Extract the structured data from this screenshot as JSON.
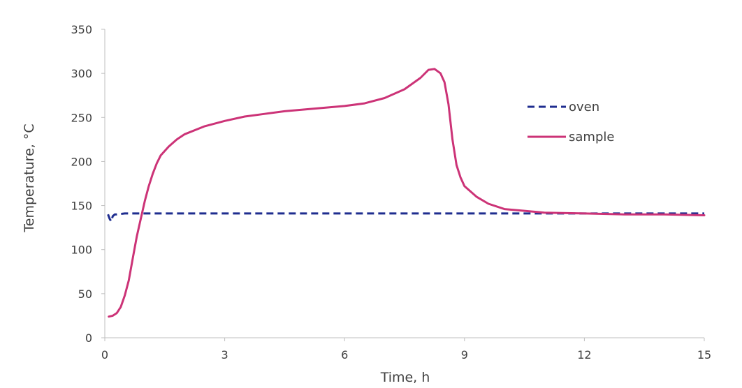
{
  "chart_data": {
    "type": "line",
    "title": "",
    "xlabel": "Time, h",
    "ylabel": "Temperature, °C",
    "xlim": [
      0,
      15
    ],
    "ylim": [
      0,
      350
    ],
    "xticks": [
      0,
      3,
      6,
      9,
      12,
      15
    ],
    "yticks": [
      0,
      50,
      100,
      150,
      200,
      250,
      300,
      350
    ],
    "grid": false,
    "legend_position": "right",
    "series": [
      {
        "name": "oven",
        "style": "dashed",
        "color": "#1f2d8f",
        "points": [
          [
            0.08,
            140
          ],
          [
            0.12,
            135
          ],
          [
            0.16,
            132
          ],
          [
            0.2,
            138
          ],
          [
            0.25,
            140
          ],
          [
            0.3,
            140
          ],
          [
            0.5,
            141
          ],
          [
            1,
            141
          ],
          [
            2,
            141
          ],
          [
            3,
            141
          ],
          [
            4,
            141
          ],
          [
            5,
            141
          ],
          [
            6,
            141
          ],
          [
            7,
            141
          ],
          [
            8,
            141
          ],
          [
            9,
            141
          ],
          [
            10,
            141
          ],
          [
            11,
            141
          ],
          [
            12,
            141
          ],
          [
            13,
            141
          ],
          [
            14,
            141
          ],
          [
            15,
            141
          ]
        ]
      },
      {
        "name": "sample",
        "style": "solid",
        "color": "#cc3377",
        "points": [
          [
            0.1,
            24
          ],
          [
            0.2,
            25
          ],
          [
            0.3,
            28
          ],
          [
            0.4,
            35
          ],
          [
            0.5,
            48
          ],
          [
            0.6,
            65
          ],
          [
            0.7,
            90
          ],
          [
            0.8,
            115
          ],
          [
            0.9,
            135
          ],
          [
            1.0,
            155
          ],
          [
            1.1,
            172
          ],
          [
            1.2,
            186
          ],
          [
            1.3,
            198
          ],
          [
            1.4,
            207
          ],
          [
            1.6,
            217
          ],
          [
            1.8,
            225
          ],
          [
            2.0,
            231
          ],
          [
            2.5,
            240
          ],
          [
            3,
            246
          ],
          [
            3.5,
            251
          ],
          [
            4,
            254
          ],
          [
            4.5,
            257
          ],
          [
            5,
            259
          ],
          [
            5.5,
            261
          ],
          [
            6,
            263
          ],
          [
            6.5,
            266
          ],
          [
            7,
            272
          ],
          [
            7.5,
            282
          ],
          [
            7.9,
            295
          ],
          [
            8.1,
            304
          ],
          [
            8.25,
            305
          ],
          [
            8.4,
            300
          ],
          [
            8.5,
            290
          ],
          [
            8.6,
            265
          ],
          [
            8.7,
            225
          ],
          [
            8.8,
            196
          ],
          [
            8.9,
            182
          ],
          [
            9.0,
            172
          ],
          [
            9.3,
            160
          ],
          [
            9.6,
            152
          ],
          [
            10,
            146
          ],
          [
            10.5,
            144
          ],
          [
            11,
            142
          ],
          [
            12,
            141
          ],
          [
            13,
            140
          ],
          [
            14,
            140
          ],
          [
            15,
            139
          ]
        ]
      }
    ]
  }
}
